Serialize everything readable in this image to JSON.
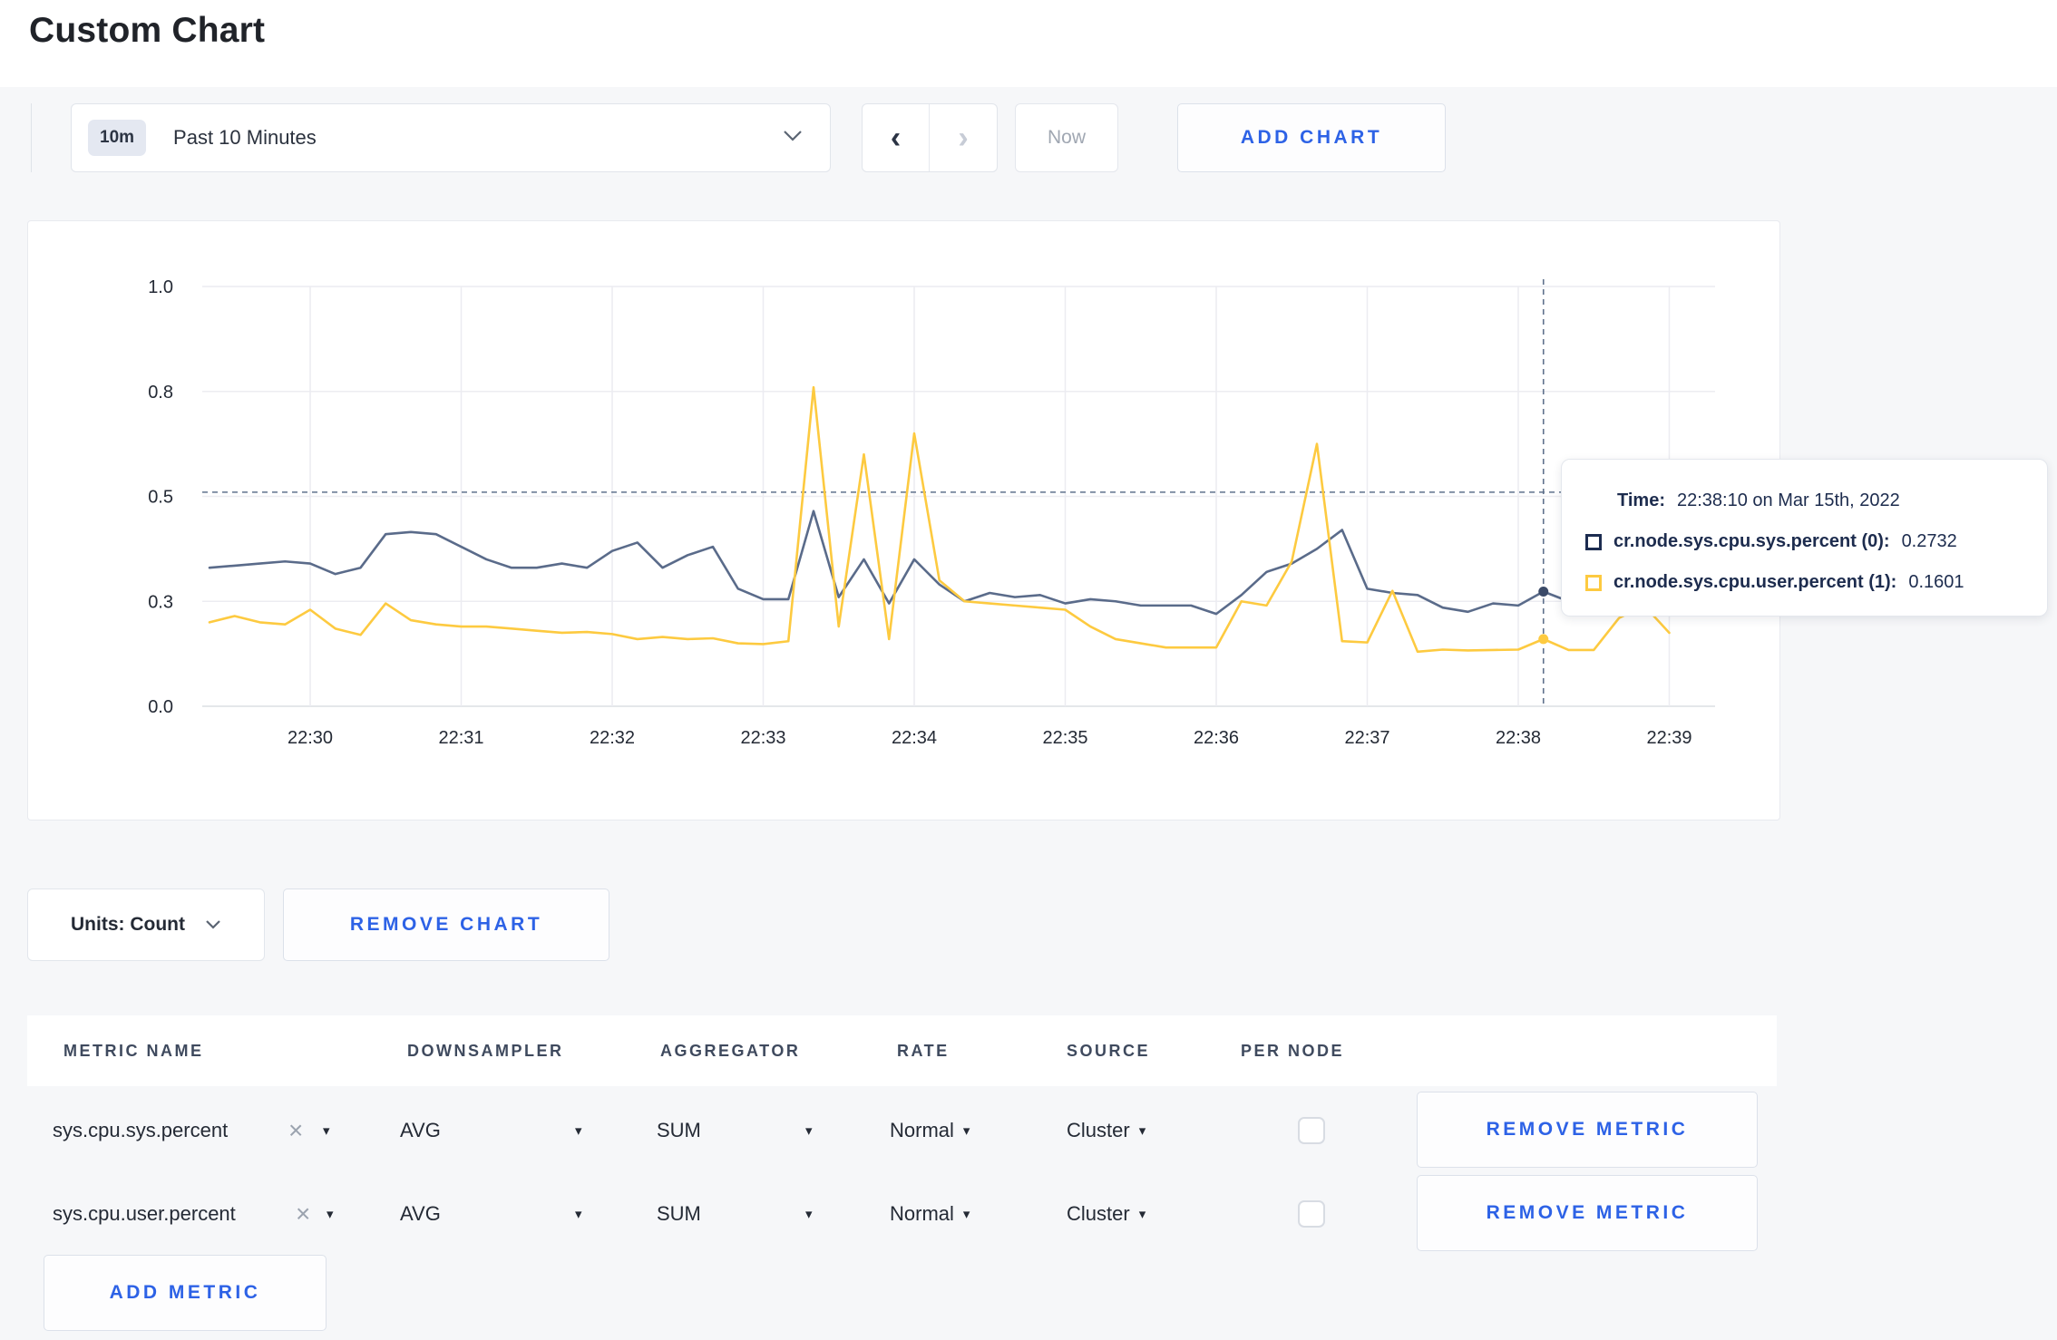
{
  "colors": {
    "accent": "#2d62e6",
    "series_sys": "#5a6b8a",
    "series_user": "#fdca40",
    "tooltip_text": "#1d2c4e",
    "swatch_sys": "#1c2c50",
    "swatch_user": "#fdca40"
  },
  "page": {
    "title": "Custom Chart"
  },
  "toolbar": {
    "range_badge": "10m",
    "range_label": "Past 10 Minutes",
    "prev_arrow": "‹",
    "next_arrow": "›",
    "now_label": "Now",
    "add_chart_label": "ADD CHART"
  },
  "chart_controls": {
    "units_label": "Units: Count",
    "remove_chart_label": "REMOVE CHART",
    "add_metric_label": "ADD METRIC"
  },
  "tooltip": {
    "time_label": "Time:",
    "time_value": "22:38:10 on Mar 15th, 2022",
    "rows": [
      {
        "name": "cr.node.sys.cpu.sys.percent (0):",
        "value": "0.2732"
      },
      {
        "name": "cr.node.sys.cpu.user.percent (1):",
        "value": "0.1601"
      }
    ]
  },
  "table": {
    "headers": [
      "METRIC NAME",
      "DOWNSAMPLER",
      "AGGREGATOR",
      "RATE",
      "SOURCE",
      "PER NODE"
    ],
    "rows": [
      {
        "metric_name": "sys.cpu.sys.percent",
        "downsampler": "AVG",
        "aggregator": "SUM",
        "rate": "Normal",
        "source": "Cluster",
        "per_node_checked": false,
        "remove_label": "REMOVE METRIC"
      },
      {
        "metric_name": "sys.cpu.user.percent",
        "downsampler": "AVG",
        "aggregator": "SUM",
        "rate": "Normal",
        "source": "Cluster",
        "per_node_checked": false,
        "remove_label": "REMOVE METRIC"
      }
    ]
  },
  "chart_data": {
    "type": "line",
    "title": "",
    "xlabel": "",
    "ylabel": "",
    "grid": true,
    "legend": "none (hover tooltip only)",
    "ylim": [
      0,
      1
    ],
    "x_base_time": "22:30:00",
    "x_tick_labels": [
      "22:30",
      "22:31",
      "22:32",
      "22:33",
      "22:34",
      "22:35",
      "22:36",
      "22:37",
      "22:38",
      "22:39"
    ],
    "y_ticks": [
      {
        "label": "1.0",
        "value": 1.0
      },
      {
        "label": "0.8",
        "value": 0.75
      },
      {
        "label": "0.5",
        "value": 0.5
      },
      {
        "label": "0.3",
        "value": 0.25
      },
      {
        "label": "0.0",
        "value": 0.0
      }
    ],
    "x_times": [
      "22:29:20",
      "22:29:30",
      "22:29:40",
      "22:29:50",
      "22:30:00",
      "22:30:10",
      "22:30:20",
      "22:30:30",
      "22:30:40",
      "22:30:50",
      "22:31:00",
      "22:31:10",
      "22:31:20",
      "22:31:30",
      "22:31:40",
      "22:31:50",
      "22:32:00",
      "22:32:10",
      "22:32:20",
      "22:32:30",
      "22:32:40",
      "22:32:50",
      "22:33:00",
      "22:33:10",
      "22:33:20",
      "22:33:30",
      "22:33:40",
      "22:33:50",
      "22:34:00",
      "22:34:10",
      "22:34:20",
      "22:34:30",
      "22:34:40",
      "22:34:50",
      "22:35:00",
      "22:35:10",
      "22:35:20",
      "22:35:30",
      "22:35:40",
      "22:35:50",
      "22:36:00",
      "22:36:10",
      "22:36:20",
      "22:36:30",
      "22:36:40",
      "22:36:50",
      "22:37:00",
      "22:37:10",
      "22:37:20",
      "22:37:30",
      "22:37:40",
      "22:37:50",
      "22:38:00",
      "22:38:10",
      "22:38:20",
      "22:38:30",
      "22:38:40",
      "22:38:50",
      "22:39:00"
    ],
    "series": [
      {
        "name": "cr.node.sys.cpu.sys.percent (0)",
        "color": "#5a6b8a",
        "values": [
          0.33,
          0.335,
          0.34,
          0.345,
          0.34,
          0.315,
          0.33,
          0.41,
          0.415,
          0.41,
          0.38,
          0.35,
          0.33,
          0.33,
          0.34,
          0.33,
          0.37,
          0.39,
          0.33,
          0.36,
          0.38,
          0.28,
          0.255,
          0.255,
          0.465,
          0.26,
          0.35,
          0.245,
          0.35,
          0.29,
          0.25,
          0.27,
          0.26,
          0.265,
          0.245,
          0.255,
          0.25,
          0.24,
          0.24,
          0.24,
          0.22,
          0.265,
          0.32,
          0.34,
          0.375,
          0.42,
          0.28,
          0.27,
          0.265,
          0.235,
          0.225,
          0.245,
          0.24,
          0.2732,
          0.25,
          0.25,
          0.26,
          0.27,
          0.28
        ]
      },
      {
        "name": "cr.node.sys.cpu.user.percent (1)",
        "color": "#fdca40",
        "values": [
          0.2,
          0.215,
          0.2,
          0.195,
          0.23,
          0.185,
          0.17,
          0.245,
          0.205,
          0.195,
          0.19,
          0.19,
          0.185,
          0.18,
          0.175,
          0.177,
          0.172,
          0.16,
          0.165,
          0.16,
          0.162,
          0.15,
          0.148,
          0.155,
          0.76,
          0.19,
          0.6,
          0.16,
          0.65,
          0.3,
          0.25,
          0.245,
          0.24,
          0.235,
          0.23,
          0.19,
          0.16,
          0.15,
          0.14,
          0.14,
          0.14,
          0.25,
          0.24,
          0.345,
          0.625,
          0.155,
          0.152,
          0.275,
          0.13,
          0.135,
          0.133,
          0.134,
          0.135,
          0.1601,
          0.134,
          0.134,
          0.21,
          0.24,
          0.175
        ]
      }
    ],
    "crosshair": {
      "time": "22:38:10",
      "h_value": 0.51,
      "points": [
        {
          "series": 0,
          "value": 0.2732,
          "dot_color": "#3b4a68"
        },
        {
          "series": 1,
          "value": 0.1601,
          "dot_color": "#fdca40"
        }
      ]
    }
  }
}
